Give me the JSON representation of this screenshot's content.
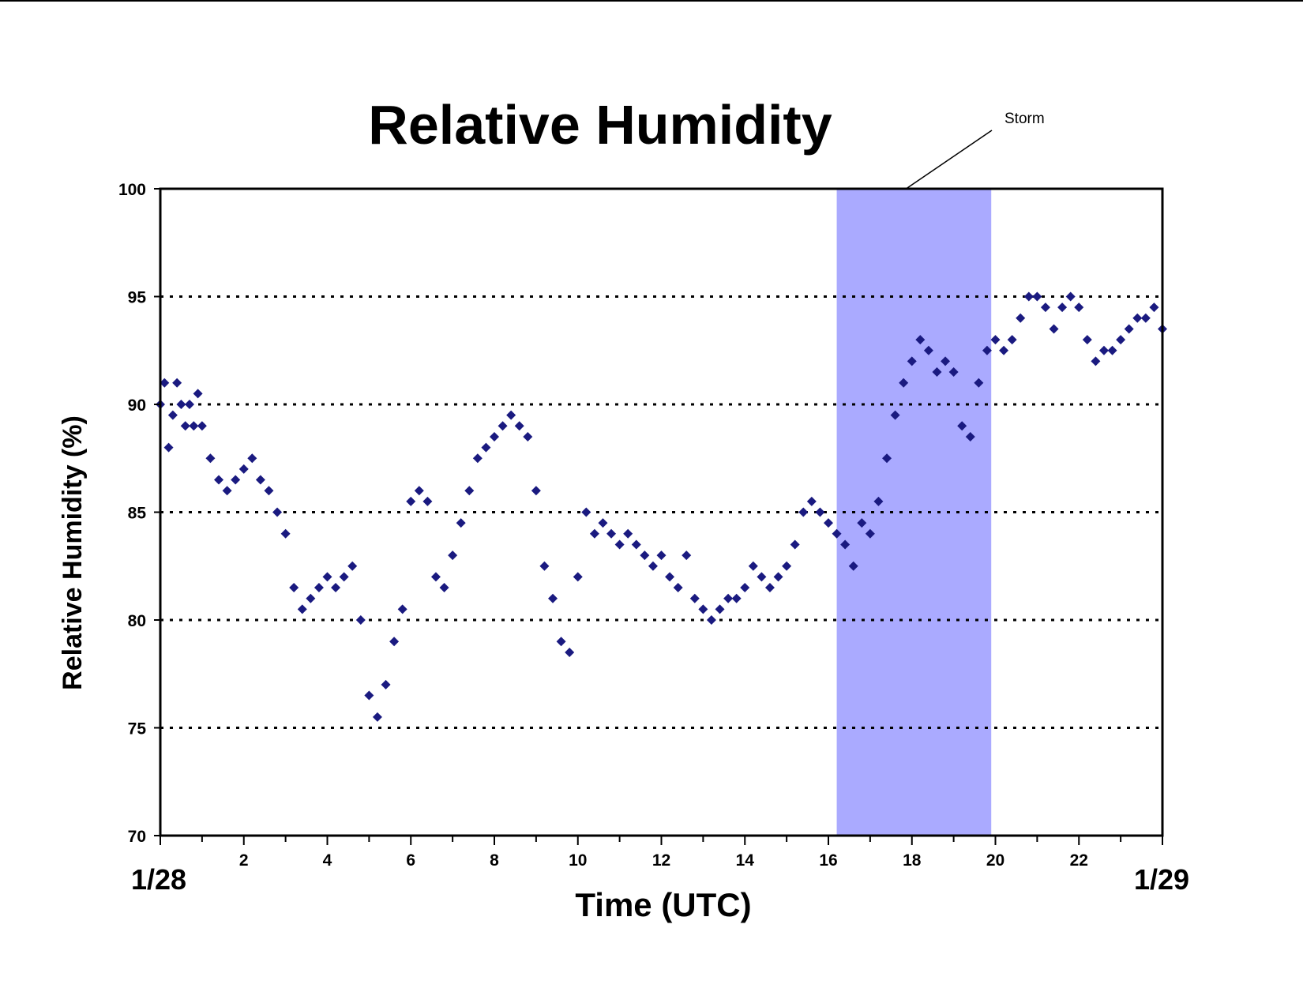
{
  "chart_data": {
    "type": "scatter",
    "title": "Relative Humidity",
    "xlabel": "Time (UTC)",
    "ylabel": "Relative Humidity (%)",
    "xlim": [
      0,
      24
    ],
    "ylim": [
      70,
      100
    ],
    "x_tick_labels": [
      "2",
      "4",
      "6",
      "8",
      "10",
      "12",
      "14",
      "16",
      "18",
      "20",
      "22"
    ],
    "x_tick_values": [
      2,
      4,
      6,
      8,
      10,
      12,
      14,
      16,
      18,
      20,
      22
    ],
    "y_tick_labels": [
      "70",
      "75",
      "80",
      "85",
      "90",
      "95",
      "100"
    ],
    "y_tick_values": [
      70,
      75,
      80,
      85,
      90,
      95,
      100
    ],
    "start_date": "1/28",
    "end_date": "1/29",
    "gridlines": "dotted horizontal at 75, 80, 85, 90, 95",
    "annotation": {
      "label": "Storm",
      "x_start": 16.2,
      "x_end": 19.9,
      "color": "#aaaaff"
    },
    "marker_color": "#1a1a80",
    "series": [
      {
        "marker": "diamond",
        "x": [
          0.0,
          0.1,
          0.2,
          0.3,
          0.4,
          0.5,
          0.6,
          0.7,
          0.8,
          0.9,
          1.0,
          1.2,
          1.4,
          1.6,
          1.8,
          2.0,
          2.2,
          2.4,
          2.6,
          2.8,
          3.0,
          3.2,
          3.4,
          3.6,
          3.8,
          4.0,
          4.2,
          4.4,
          4.6,
          4.8,
          5.0,
          5.2,
          5.4,
          5.6,
          5.8,
          6.0,
          6.2,
          6.4,
          6.6,
          6.8,
          7.0,
          7.2,
          7.4,
          7.6,
          7.8,
          8.0,
          8.2,
          8.4,
          8.6,
          8.8,
          9.0,
          9.2,
          9.4,
          9.6,
          9.8,
          10.0,
          10.2,
          10.4,
          10.6,
          10.8,
          11.0,
          11.2,
          11.4,
          11.6,
          11.8,
          12.0,
          12.2,
          12.4,
          12.6,
          12.8,
          13.0,
          13.2,
          13.4,
          13.6,
          13.8,
          14.0,
          14.2,
          14.4,
          14.6,
          14.8,
          15.0,
          15.2,
          15.4,
          15.6,
          15.8,
          16.0,
          16.2,
          16.4,
          16.6,
          16.8,
          17.0,
          17.2,
          17.4,
          17.6,
          17.8,
          18.0,
          18.2,
          18.4,
          18.6,
          18.8,
          19.0,
          19.2,
          19.4,
          19.6,
          19.8,
          20.0,
          20.2,
          20.4,
          20.6,
          20.8,
          21.0,
          21.2,
          21.4,
          21.6,
          21.8,
          22.0,
          22.2,
          22.4,
          22.6,
          22.8,
          23.0,
          23.2,
          23.4,
          23.6,
          23.8,
          24.0
        ],
        "y": [
          90.0,
          91.0,
          88.0,
          89.5,
          91.0,
          90.0,
          89.0,
          90.0,
          89.0,
          90.5,
          89.0,
          87.5,
          86.5,
          86.0,
          86.5,
          87.0,
          87.5,
          86.5,
          86.0,
          85.0,
          84.0,
          81.5,
          80.5,
          81.0,
          81.5,
          82.0,
          81.5,
          82.0,
          82.5,
          80.0,
          76.5,
          75.5,
          77.0,
          79.0,
          80.5,
          85.5,
          86.0,
          85.5,
          82.0,
          81.5,
          83.0,
          84.5,
          86.0,
          87.5,
          88.0,
          88.5,
          89.0,
          89.5,
          89.0,
          88.5,
          86.0,
          82.5,
          81.0,
          79.0,
          78.5,
          82.0,
          85.0,
          84.0,
          84.5,
          84.0,
          83.5,
          84.0,
          83.5,
          83.0,
          82.5,
          83.0,
          82.0,
          81.5,
          83.0,
          81.0,
          80.5,
          80.0,
          80.5,
          81.0,
          81.0,
          81.5,
          82.5,
          82.0,
          81.5,
          82.0,
          82.5,
          83.5,
          85.0,
          85.5,
          85.0,
          84.5,
          84.0,
          83.5,
          82.5,
          84.5,
          84.0,
          85.5,
          87.5,
          89.5,
          91.0,
          92.0,
          93.0,
          92.5,
          91.5,
          92.0,
          91.5,
          89.0,
          88.5,
          91.0,
          92.5,
          93.0,
          92.5,
          93.0,
          94.0,
          95.0,
          95.0,
          94.5,
          93.5,
          94.5,
          95.0,
          94.5,
          93.0,
          92.0,
          92.5,
          92.5,
          93.0,
          93.5,
          94.0,
          94.0,
          94.5,
          93.5
        ]
      }
    ]
  }
}
